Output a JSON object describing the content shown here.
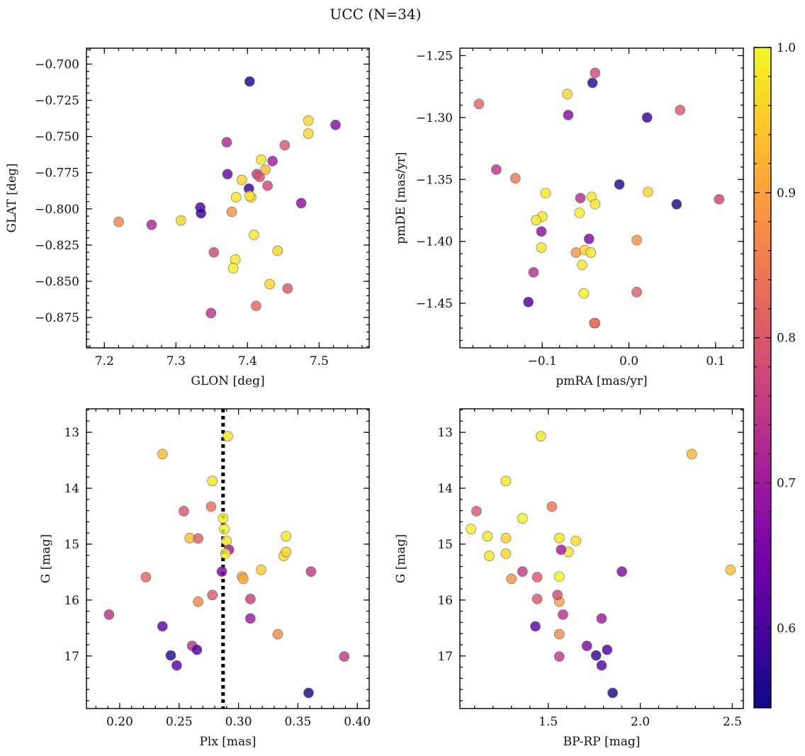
{
  "title": "UCC (N=34)",
  "colorbar": {
    "ticks": [
      "0.6",
      "0.7",
      "0.8",
      "0.9",
      "1.0"
    ],
    "tick_values": [
      0.6,
      0.7,
      0.8,
      0.9,
      1.0
    ],
    "range": [
      0.545,
      1.0
    ],
    "colormap": "plasma",
    "stops": [
      "#0d0887",
      "#46039f",
      "#7201a8",
      "#9c179e",
      "#bd3786",
      "#d8576b",
      "#ed7953",
      "#fb9f3a",
      "#fdca26",
      "#f0f921"
    ]
  },
  "chart_data": [
    {
      "type": "scatter",
      "xlabel": "GLON [deg]",
      "ylabel": "GLAT [deg]",
      "xlim": [
        7.175,
        7.57
      ],
      "ylim": [
        -0.896,
        -0.689
      ],
      "invert_y": false,
      "xticks": [
        7.2,
        7.3,
        7.4,
        7.5
      ],
      "xtick_labels": [
        "7.2",
        "7.3",
        "7.4",
        "7.5"
      ],
      "yticks": [
        -0.875,
        -0.85,
        -0.825,
        -0.8,
        -0.775,
        -0.75,
        -0.725,
        -0.7
      ],
      "ytick_labels": [
        "−0.875",
        "−0.850",
        "−0.825",
        "−0.800",
        "−0.775",
        "−0.750",
        "−0.725",
        "−0.700"
      ],
      "x": [
        7.403,
        7.485,
        7.523,
        7.485,
        7.371,
        7.452,
        7.419,
        7.435,
        7.425,
        7.372,
        7.413,
        7.392,
        7.417,
        7.402,
        7.428,
        7.384,
        7.405,
        7.334,
        7.475,
        7.403,
        7.378,
        7.335,
        7.22,
        7.307,
        7.266,
        7.409,
        7.353,
        7.442,
        7.383,
        7.38,
        7.431,
        7.456,
        7.349,
        7.412
      ],
      "y": [
        -0.712,
        -0.739,
        -0.742,
        -0.748,
        -0.754,
        -0.756,
        -0.766,
        -0.767,
        -0.773,
        -0.776,
        -0.776,
        -0.78,
        -0.778,
        -0.786,
        -0.784,
        -0.792,
        -0.792,
        -0.799,
        -0.796,
        -0.791,
        -0.802,
        -0.803,
        -0.809,
        -0.808,
        -0.811,
        -0.818,
        -0.83,
        -0.829,
        -0.835,
        -0.841,
        -0.852,
        -0.855,
        -0.872,
        -0.867
      ],
      "c": [
        0.56,
        0.96,
        0.67,
        0.96,
        0.72,
        0.8,
        0.98,
        0.7,
        0.93,
        0.63,
        0.75,
        0.96,
        0.79,
        0.58,
        0.77,
        0.98,
        0.98,
        0.6,
        0.68,
        0.98,
        0.88,
        0.58,
        0.86,
        0.96,
        0.72,
        0.98,
        0.78,
        0.96,
        0.98,
        0.99,
        0.96,
        0.8,
        0.74,
        0.82
      ]
    },
    {
      "type": "scatter",
      "xlabel": "pmRA [mas/yr]",
      "ylabel": "pmDE [mas/yr]",
      "xlim": [
        -0.195,
        0.132
      ],
      "ylim": [
        -1.486,
        -1.244
      ],
      "invert_y": false,
      "xticks": [
        -0.1,
        0.0,
        0.1
      ],
      "xtick_labels": [
        "−0.1",
        "0.0",
        "0.1"
      ],
      "yticks": [
        -1.45,
        -1.4,
        -1.35,
        -1.3,
        -1.25
      ],
      "ytick_labels": [
        "−1.45",
        "−1.40",
        "−1.35",
        "−1.30",
        "−1.25"
      ],
      "x": [
        -0.039,
        -0.042,
        -0.071,
        -0.173,
        -0.07,
        0.021,
        0.059,
        -0.153,
        -0.131,
        -0.011,
        -0.096,
        0.022,
        0.104,
        -0.056,
        -0.043,
        0.055,
        -0.039,
        -0.1,
        -0.057,
        -0.107,
        -0.101,
        -0.046,
        0.009,
        -0.101,
        -0.061,
        -0.051,
        -0.044,
        -0.054,
        -0.11,
        0.009,
        -0.052,
        -0.116,
        -0.039,
        -0.04
      ],
      "y": [
        -1.264,
        -1.272,
        -1.281,
        -1.289,
        -1.298,
        -1.3,
        -1.294,
        -1.342,
        -1.349,
        -1.354,
        -1.361,
        -1.36,
        -1.366,
        -1.365,
        -1.364,
        -1.37,
        -1.37,
        -1.38,
        -1.377,
        -1.383,
        -1.392,
        -1.398,
        -1.399,
        -1.405,
        -1.409,
        -1.407,
        -1.409,
        -1.419,
        -1.425,
        -1.441,
        -1.442,
        -1.449,
        -1.466,
        -1.466
      ],
      "c": [
        0.78,
        0.57,
        0.96,
        0.82,
        0.67,
        0.58,
        0.8,
        0.74,
        0.85,
        0.57,
        0.98,
        0.96,
        0.77,
        0.73,
        0.98,
        0.56,
        0.98,
        0.98,
        0.99,
        0.98,
        0.68,
        0.66,
        0.88,
        0.98,
        0.88,
        0.96,
        0.98,
        0.98,
        0.73,
        0.81,
        0.99,
        0.6,
        0.86,
        0.83
      ]
    },
    {
      "type": "scatter",
      "xlabel": "Plx [mas]",
      "ylabel": "G [mag]",
      "xlim": [
        0.172,
        0.41
      ],
      "ylim": [
        17.94,
        12.58
      ],
      "invert_y": true,
      "xticks": [
        0.2,
        0.25,
        0.3,
        0.35,
        0.4
      ],
      "xtick_labels": [
        "0.20",
        "0.25",
        "0.30",
        "0.35",
        "0.40"
      ],
      "yticks": [
        13,
        14,
        15,
        16,
        17
      ],
      "ytick_labels": [
        "13",
        "14",
        "15",
        "16",
        "17"
      ],
      "vline": 0.287,
      "x": [
        0.291,
        0.236,
        0.278,
        0.254,
        0.277,
        0.287,
        0.288,
        0.259,
        0.266,
        0.29,
        0.34,
        0.292,
        0.338,
        0.34,
        0.289,
        0.303,
        0.319,
        0.361,
        0.286,
        0.222,
        0.278,
        0.304,
        0.31,
        0.266,
        0.191,
        0.31,
        0.236,
        0.333,
        0.261,
        0.265,
        0.243,
        0.389,
        0.248,
        0.359
      ],
      "y": [
        13.07,
        13.39,
        13.87,
        14.41,
        14.33,
        14.54,
        14.73,
        14.89,
        14.9,
        14.94,
        14.86,
        15.1,
        15.21,
        15.14,
        15.17,
        15.58,
        15.46,
        15.49,
        15.49,
        15.59,
        15.91,
        15.62,
        15.98,
        16.03,
        16.26,
        16.33,
        16.47,
        16.61,
        16.82,
        16.89,
        16.99,
        17.01,
        17.17,
        17.66
      ],
      "c": [
        0.98,
        0.93,
        0.98,
        0.8,
        0.84,
        0.99,
        0.99,
        0.94,
        0.81,
        0.98,
        0.98,
        0.7,
        0.97,
        0.96,
        0.99,
        0.9,
        0.95,
        0.75,
        0.66,
        0.82,
        0.8,
        0.91,
        0.76,
        0.87,
        0.74,
        0.7,
        0.62,
        0.87,
        0.74,
        0.6,
        0.57,
        0.75,
        0.62,
        0.56
      ]
    },
    {
      "type": "scatter",
      "xlabel": "BP-RP [mag]",
      "ylabel": "G [mag]",
      "xlim": [
        1.02,
        2.56
      ],
      "ylim": [
        17.94,
        12.58
      ],
      "invert_y": true,
      "xticks": [
        1.5,
        2.0,
        2.5
      ],
      "xtick_labels": [
        "1.5",
        "2.0",
        "2.5"
      ],
      "yticks": [
        13,
        14,
        15,
        16,
        17
      ],
      "ytick_labels": [
        "13",
        "14",
        "15",
        "16",
        "17"
      ],
      "x": [
        1.46,
        2.28,
        1.27,
        1.11,
        1.52,
        1.36,
        1.08,
        1.17,
        1.27,
        1.56,
        1.65,
        1.18,
        1.27,
        1.61,
        1.57,
        2.49,
        1.56,
        1.3,
        1.36,
        1.9,
        1.44,
        1.56,
        1.55,
        1.44,
        1.58,
        1.79,
        1.43,
        1.56,
        1.71,
        1.82,
        1.76,
        1.56,
        1.79,
        1.85
      ],
      "y": [
        13.07,
        13.39,
        13.87,
        14.41,
        14.33,
        14.54,
        14.73,
        14.86,
        14.89,
        14.89,
        14.94,
        15.21,
        15.17,
        15.14,
        15.1,
        15.46,
        15.58,
        15.62,
        15.49,
        15.49,
        15.59,
        16.03,
        15.91,
        15.98,
        16.26,
        16.33,
        16.47,
        16.61,
        16.82,
        16.89,
        16.99,
        17.01,
        17.17,
        17.66
      ],
      "c": [
        0.98,
        0.93,
        0.98,
        0.8,
        0.84,
        0.99,
        0.99,
        0.98,
        0.96,
        0.98,
        0.97,
        0.98,
        0.96,
        0.98,
        0.7,
        0.94,
        0.99,
        0.88,
        0.75,
        0.66,
        0.8,
        0.9,
        0.78,
        0.8,
        0.74,
        0.7,
        0.62,
        0.87,
        0.66,
        0.6,
        0.57,
        0.75,
        0.62,
        0.56
      ]
    }
  ]
}
